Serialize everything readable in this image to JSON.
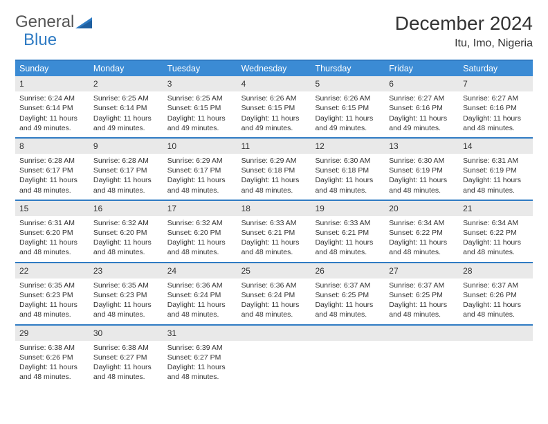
{
  "brand": {
    "text1": "General",
    "text2": "Blue"
  },
  "title": "December 2024",
  "location": "Itu, Imo, Nigeria",
  "colors": {
    "header_bar": "#3b8bd4",
    "rule": "#2f7bc3",
    "daynum_bg": "#e9e9e9",
    "text": "#333333",
    "white": "#ffffff"
  },
  "weekdays": [
    "Sunday",
    "Monday",
    "Tuesday",
    "Wednesday",
    "Thursday",
    "Friday",
    "Saturday"
  ],
  "weeks": [
    [
      {
        "n": "1",
        "sr": "6:24 AM",
        "ss": "6:14 PM",
        "dl": "11 hours and 49 minutes."
      },
      {
        "n": "2",
        "sr": "6:25 AM",
        "ss": "6:14 PM",
        "dl": "11 hours and 49 minutes."
      },
      {
        "n": "3",
        "sr": "6:25 AM",
        "ss": "6:15 PM",
        "dl": "11 hours and 49 minutes."
      },
      {
        "n": "4",
        "sr": "6:26 AM",
        "ss": "6:15 PM",
        "dl": "11 hours and 49 minutes."
      },
      {
        "n": "5",
        "sr": "6:26 AM",
        "ss": "6:15 PM",
        "dl": "11 hours and 49 minutes."
      },
      {
        "n": "6",
        "sr": "6:27 AM",
        "ss": "6:16 PM",
        "dl": "11 hours and 49 minutes."
      },
      {
        "n": "7",
        "sr": "6:27 AM",
        "ss": "6:16 PM",
        "dl": "11 hours and 48 minutes."
      }
    ],
    [
      {
        "n": "8",
        "sr": "6:28 AM",
        "ss": "6:17 PM",
        "dl": "11 hours and 48 minutes."
      },
      {
        "n": "9",
        "sr": "6:28 AM",
        "ss": "6:17 PM",
        "dl": "11 hours and 48 minutes."
      },
      {
        "n": "10",
        "sr": "6:29 AM",
        "ss": "6:17 PM",
        "dl": "11 hours and 48 minutes."
      },
      {
        "n": "11",
        "sr": "6:29 AM",
        "ss": "6:18 PM",
        "dl": "11 hours and 48 minutes."
      },
      {
        "n": "12",
        "sr": "6:30 AM",
        "ss": "6:18 PM",
        "dl": "11 hours and 48 minutes."
      },
      {
        "n": "13",
        "sr": "6:30 AM",
        "ss": "6:19 PM",
        "dl": "11 hours and 48 minutes."
      },
      {
        "n": "14",
        "sr": "6:31 AM",
        "ss": "6:19 PM",
        "dl": "11 hours and 48 minutes."
      }
    ],
    [
      {
        "n": "15",
        "sr": "6:31 AM",
        "ss": "6:20 PM",
        "dl": "11 hours and 48 minutes."
      },
      {
        "n": "16",
        "sr": "6:32 AM",
        "ss": "6:20 PM",
        "dl": "11 hours and 48 minutes."
      },
      {
        "n": "17",
        "sr": "6:32 AM",
        "ss": "6:20 PM",
        "dl": "11 hours and 48 minutes."
      },
      {
        "n": "18",
        "sr": "6:33 AM",
        "ss": "6:21 PM",
        "dl": "11 hours and 48 minutes."
      },
      {
        "n": "19",
        "sr": "6:33 AM",
        "ss": "6:21 PM",
        "dl": "11 hours and 48 minutes."
      },
      {
        "n": "20",
        "sr": "6:34 AM",
        "ss": "6:22 PM",
        "dl": "11 hours and 48 minutes."
      },
      {
        "n": "21",
        "sr": "6:34 AM",
        "ss": "6:22 PM",
        "dl": "11 hours and 48 minutes."
      }
    ],
    [
      {
        "n": "22",
        "sr": "6:35 AM",
        "ss": "6:23 PM",
        "dl": "11 hours and 48 minutes."
      },
      {
        "n": "23",
        "sr": "6:35 AM",
        "ss": "6:23 PM",
        "dl": "11 hours and 48 minutes."
      },
      {
        "n": "24",
        "sr": "6:36 AM",
        "ss": "6:24 PM",
        "dl": "11 hours and 48 minutes."
      },
      {
        "n": "25",
        "sr": "6:36 AM",
        "ss": "6:24 PM",
        "dl": "11 hours and 48 minutes."
      },
      {
        "n": "26",
        "sr": "6:37 AM",
        "ss": "6:25 PM",
        "dl": "11 hours and 48 minutes."
      },
      {
        "n": "27",
        "sr": "6:37 AM",
        "ss": "6:25 PM",
        "dl": "11 hours and 48 minutes."
      },
      {
        "n": "28",
        "sr": "6:37 AM",
        "ss": "6:26 PM",
        "dl": "11 hours and 48 minutes."
      }
    ],
    [
      {
        "n": "29",
        "sr": "6:38 AM",
        "ss": "6:26 PM",
        "dl": "11 hours and 48 minutes."
      },
      {
        "n": "30",
        "sr": "6:38 AM",
        "ss": "6:27 PM",
        "dl": "11 hours and 48 minutes."
      },
      {
        "n": "31",
        "sr": "6:39 AM",
        "ss": "6:27 PM",
        "dl": "11 hours and 48 minutes."
      },
      null,
      null,
      null,
      null
    ]
  ],
  "labels": {
    "sunrise": "Sunrise:",
    "sunset": "Sunset:",
    "daylight": "Daylight:"
  }
}
